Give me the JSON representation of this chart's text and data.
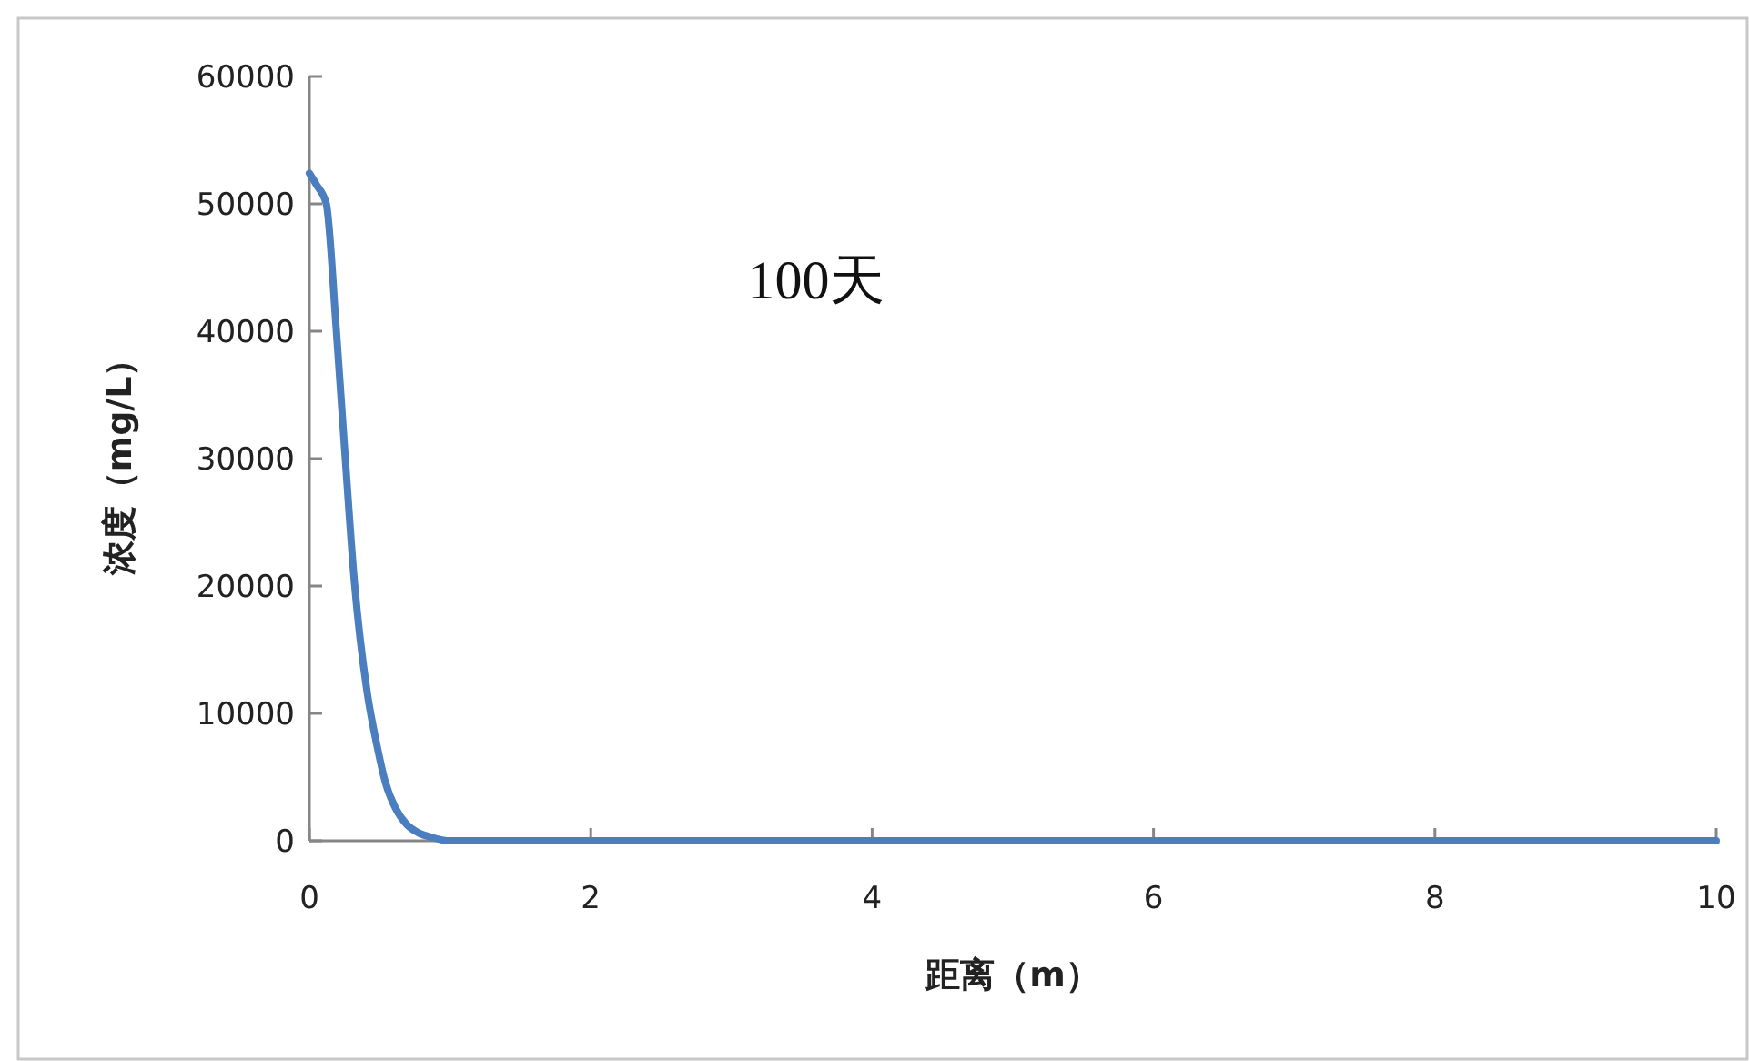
{
  "chart_data": {
    "type": "line",
    "xlabel": "距离（m）",
    "ylabel": "浓度（mg/L）",
    "annotations": [
      "100天"
    ],
    "series": [
      {
        "color": "#4a7ebf",
        "x": [
          0,
          0.05,
          0.12,
          0.19,
          0.25,
          0.32,
          0.41,
          0.48,
          0.54,
          0.61,
          0.69,
          0.78,
          0.86,
          1,
          2,
          4,
          6,
          8,
          10
        ],
        "values": [
          52400,
          51500,
          50000,
          40300,
          30800,
          20300,
          11700,
          7500,
          4600,
          2600,
          1300,
          600,
          300,
          0,
          0,
          0,
          0,
          0,
          0
        ]
      }
    ],
    "xlim": [
      0,
      10
    ],
    "xticks": [
      0,
      2,
      4,
      6,
      8,
      10
    ],
    "ylim": [
      0,
      60000
    ],
    "yticks": [
      0,
      10000,
      20000,
      30000,
      40000,
      50000,
      60000
    ],
    "grid": false,
    "marker": "none",
    "line_style": "solid"
  }
}
